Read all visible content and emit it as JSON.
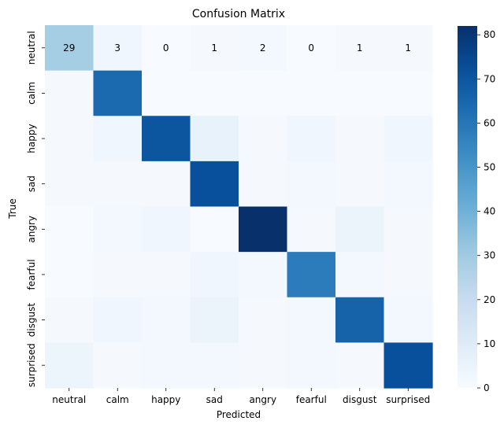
{
  "chart_data": {
    "type": "heatmap",
    "title": "Confusion Matrix",
    "xlabel": "Predicted",
    "ylabel": "True",
    "x_categories": [
      "neutral",
      "calm",
      "happy",
      "sad",
      "angry",
      "fearful",
      "disgust",
      "surprised"
    ],
    "y_categories": [
      "neutral",
      "calm",
      "happy",
      "sad",
      "angry",
      "fearful",
      "disgust",
      "surprised"
    ],
    "values": [
      [
        29,
        3,
        0,
        1,
        2,
        0,
        1,
        1
      ],
      [
        1,
        64,
        0,
        0,
        0,
        0,
        0,
        0
      ],
      [
        1,
        3,
        70,
        6,
        1,
        3,
        1,
        3
      ],
      [
        1,
        1,
        1,
        72,
        1,
        2,
        1,
        2
      ],
      [
        0,
        2,
        3,
        0,
        82,
        1,
        5,
        1
      ],
      [
        0,
        1,
        1,
        3,
        2,
        58,
        2,
        1
      ],
      [
        1,
        3,
        2,
        5,
        1,
        2,
        66,
        2
      ],
      [
        4,
        1,
        2,
        2,
        1,
        2,
        1,
        72
      ]
    ],
    "annotated_rows": [
      0
    ],
    "colorbar": {
      "min": 0,
      "max": 82,
      "ticks": [
        0,
        10,
        20,
        30,
        40,
        50,
        60,
        70,
        80
      ]
    },
    "colormap": "Blues",
    "colors": {
      "low": "#f7fbff",
      "high": "#08306b"
    }
  }
}
